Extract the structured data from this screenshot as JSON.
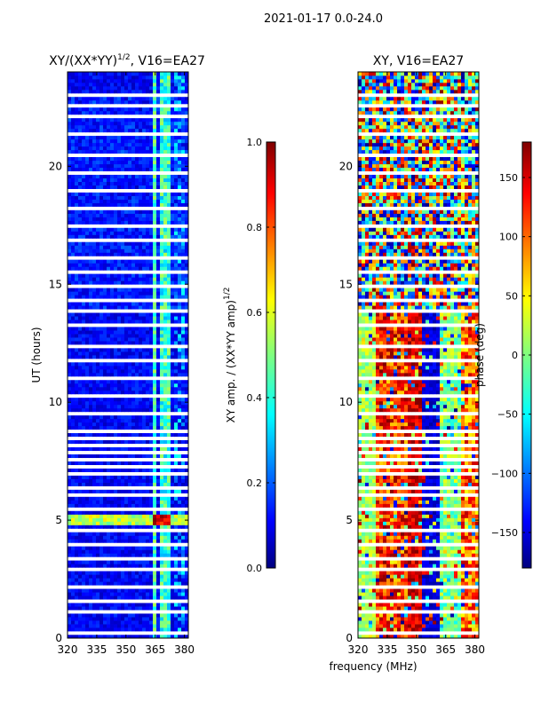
{
  "header": {
    "suptitle": "2021-01-17 0.0-24.0"
  },
  "colors": {
    "text": "#000000",
    "background": "#ffffff"
  },
  "chart_data": [
    {
      "type": "heatmap",
      "title_main": "XY/(XX*YY)",
      "title_sup": "1/2",
      "title_tail": ", V16=EA27",
      "xlabel": "",
      "ylabel": "UT (hours)",
      "xlim": [
        320,
        382
      ],
      "ylim": [
        0,
        24
      ],
      "xticks": [
        320,
        335,
        350,
        365,
        380
      ],
      "xtick_labels": [
        "320",
        "335",
        "350",
        "365",
        "380"
      ],
      "yticks": [
        0,
        5,
        10,
        15,
        20
      ],
      "ytick_labels": [
        "0",
        "5",
        "10",
        "15",
        "20"
      ],
      "colorbar": {
        "label_main": "XY amp. / (XX*YY amp)",
        "label_sup": "1/2",
        "range": [
          0.0,
          1.0
        ],
        "ticks": [
          0.0,
          0.2,
          0.4,
          0.6,
          0.8,
          1.0
        ],
        "tick_labels": [
          "0.0",
          "0.2",
          "0.4",
          "0.6",
          "0.8",
          "1.0"
        ],
        "colormap": "jet"
      },
      "notes": "Background amplitude ~0.05-0.2 (dark blue); bright band 363-372 MHz ~0.4-0.6; strong feature near UT 5 h ~0.8-1.0; flagged (white) horizontal gaps."
    },
    {
      "type": "heatmap",
      "title_main": "XY, V16=EA27",
      "xlabel": "frequency (MHz)",
      "ylabel": "",
      "xlim": [
        320,
        382
      ],
      "ylim": [
        0,
        24
      ],
      "xticks": [
        320,
        335,
        350,
        365,
        380
      ],
      "xtick_labels": [
        "320",
        "335",
        "350",
        "365",
        "380"
      ],
      "yticks": [
        0,
        5,
        10,
        15,
        20
      ],
      "ytick_labels": [
        "0",
        "5",
        "10",
        "15",
        "20"
      ],
      "colorbar": {
        "label_main": "phase (deg)",
        "range": [
          -180,
          180
        ],
        "ticks": [
          -150,
          -100,
          -50,
          0,
          50,
          100,
          150
        ],
        "tick_labels": [
          "−150",
          "−100",
          "−50",
          "0",
          "50",
          "100",
          "150"
        ],
        "colormap": "jet"
      },
      "notes": "Phase in degrees across -180..180; noisy mixed colors with flagged horizontal gaps."
    }
  ]
}
